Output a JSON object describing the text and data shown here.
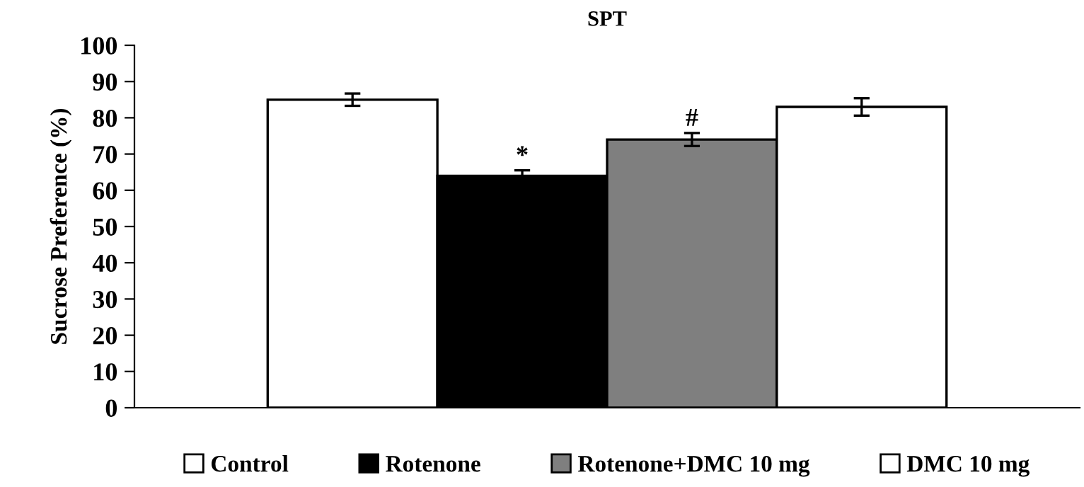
{
  "chart_data": {
    "type": "bar",
    "title": "SPT",
    "ylabel": "Sucrose Preference (%)",
    "categories": [
      null
    ],
    "series": [
      {
        "name": "Control",
        "color": "#ffffff",
        "values": [
          85
        ],
        "errors": [
          1.7
        ]
      },
      {
        "name": "Rotenone",
        "color": "#000000",
        "values": [
          64
        ],
        "errors": [
          1.5
        ],
        "value_labels": [
          "*"
        ]
      },
      {
        "name": "Rotenone+DMC 10 mg",
        "color": "#7f7f7f",
        "values": [
          74
        ],
        "errors": [
          1.8
        ],
        "value_labels": [
          "#"
        ]
      },
      {
        "name": "DMC 10 mg",
        "color": "#ffffff",
        "values": [
          83
        ],
        "errors": [
          2.4
        ]
      }
    ],
    "ylim": [
      0,
      100
    ],
    "yticks": [
      0,
      10,
      20,
      30,
      40,
      50,
      60,
      70,
      80,
      90,
      100
    ],
    "grid": false,
    "legend": "bottom"
  }
}
